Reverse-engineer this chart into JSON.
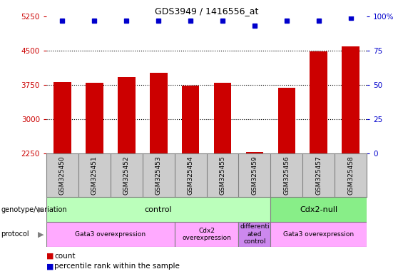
{
  "title": "GDS3949 / 1416556_at",
  "samples": [
    "GSM325450",
    "GSM325451",
    "GSM325452",
    "GSM325453",
    "GSM325454",
    "GSM325455",
    "GSM325459",
    "GSM325456",
    "GSM325457",
    "GSM325458"
  ],
  "counts": [
    3820,
    3790,
    3920,
    4020,
    3730,
    3800,
    2280,
    3690,
    4490,
    4600
  ],
  "percentiles": [
    97,
    97,
    97,
    97,
    97,
    97,
    93,
    97,
    97,
    99
  ],
  "ylim_left": [
    2250,
    5250
  ],
  "ylim_right": [
    0,
    100
  ],
  "yticks_left": [
    2250,
    3000,
    3750,
    4500,
    5250
  ],
  "yticks_right": [
    0,
    25,
    50,
    75,
    100
  ],
  "bar_color": "#cc0000",
  "dot_color": "#0000cc",
  "genotype_groups": [
    {
      "label": "control",
      "start": 0,
      "end": 7,
      "color": "#bbffbb"
    },
    {
      "label": "Cdx2-null",
      "start": 7,
      "end": 10,
      "color": "#88ee88"
    }
  ],
  "protocol_groups": [
    {
      "label": "Gata3 overexpression",
      "start": 0,
      "end": 4,
      "color": "#ffaaff"
    },
    {
      "label": "Cdx2\noverexpression",
      "start": 4,
      "end": 6,
      "color": "#ffaaff"
    },
    {
      "label": "differenti\nated\ncontrol",
      "start": 6,
      "end": 7,
      "color": "#cc88ee"
    },
    {
      "label": "Gata3 overexpression",
      "start": 7,
      "end": 10,
      "color": "#ffaaff"
    }
  ],
  "left_label_color": "#cc0000",
  "right_label_color": "#0000cc",
  "tick_area_color": "#cccccc",
  "grid_yticks": [
    3000,
    3750,
    4500
  ]
}
